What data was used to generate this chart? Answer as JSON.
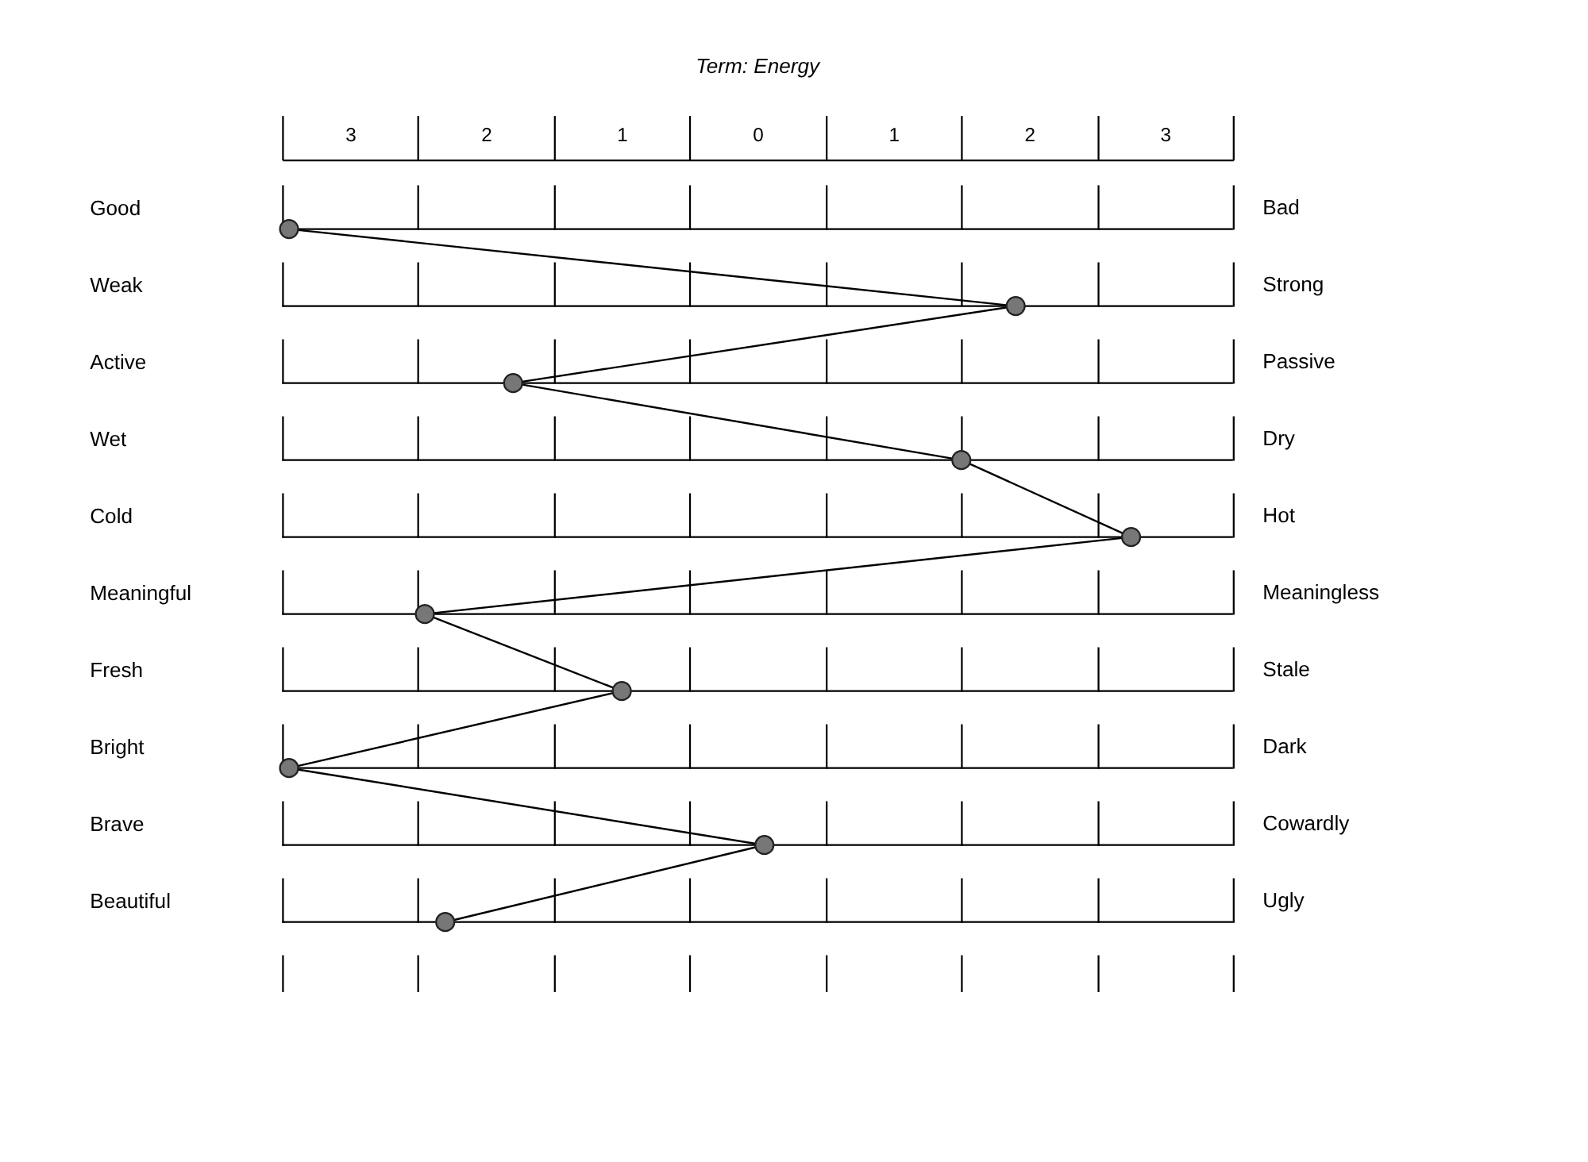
{
  "chart_data": {
    "type": "line",
    "orientation": "horizontal",
    "title": "Term:  Energy",
    "categories": [
      "Good",
      "Weak",
      "Active",
      "Wet",
      "Cold",
      "Meaningful",
      "Fresh",
      "Bright",
      "Brave",
      "Beautiful"
    ],
    "y2_categories": [
      "Bad",
      "Strong",
      "Passive",
      "Dry",
      "Hot",
      "Meaningless",
      "Stale",
      "Dark",
      "Cowardly",
      "Ugly"
    ],
    "series": [
      {
        "color": "#777777",
        "values": [
          -3.45,
          1.9,
          -1.8,
          1.5,
          2.75,
          -2.45,
          -1.0,
          -3.45,
          0.05,
          -2.3
        ]
      }
    ],
    "xlim": [
      -3.5,
      3.5
    ],
    "xticks": [
      {
        "value": -3.5,
        "label": null
      },
      {
        "value": -3,
        "label": "3"
      },
      {
        "value": -2.5,
        "label": null
      },
      {
        "value": -2,
        "label": "2"
      },
      {
        "value": -1.5,
        "label": null
      },
      {
        "value": -1,
        "label": "1"
      },
      {
        "value": -0.5,
        "label": null
      },
      {
        "value": 0,
        "label": "0"
      },
      {
        "value": 0.5,
        "label": null
      },
      {
        "value": 1,
        "label": "1"
      },
      {
        "value": 1.5,
        "label": null
      },
      {
        "value": 2,
        "label": "2"
      },
      {
        "value": 2.5,
        "label": null
      },
      {
        "value": 3,
        "label": "3"
      },
      {
        "value": 3.5,
        "label": null
      }
    ],
    "marker": "circle",
    "grid": "x"
  }
}
